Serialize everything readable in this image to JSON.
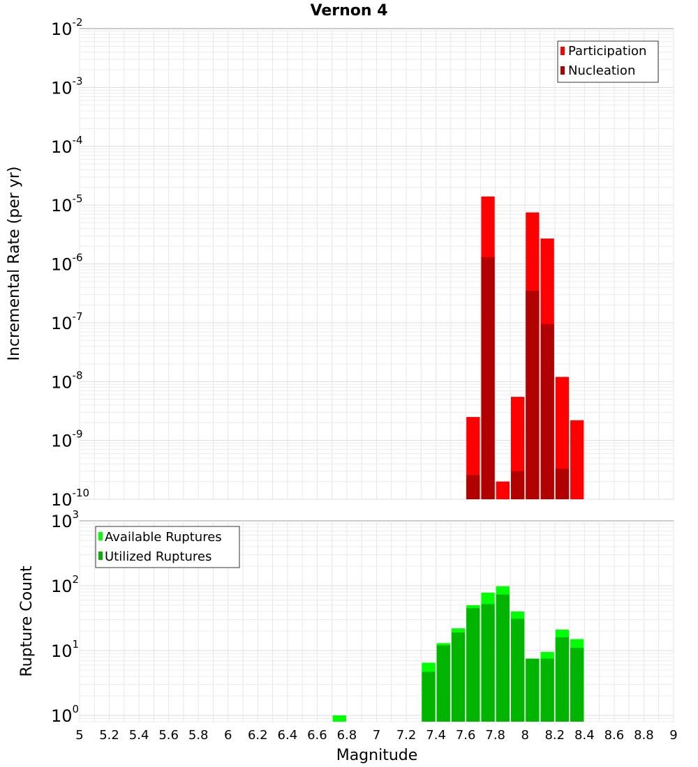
{
  "chart_data": [
    {
      "type": "bar",
      "title": "Vernon 4",
      "xlabel": "",
      "ylabel": "Incremental Rate (per yr)",
      "y_scale": "log",
      "ylim": [
        1e-10,
        0.01
      ],
      "y_tick_exponents": [
        "-2",
        "-3",
        "-4",
        "-5",
        "-6",
        "-7",
        "-8",
        "-9",
        "-10"
      ],
      "xlim": [
        5,
        9
      ],
      "grid": true,
      "legend": {
        "placement": "top-right",
        "entries": [
          {
            "name": "Participation",
            "color": "#ff0000"
          },
          {
            "name": "Nucleation",
            "color": "#b00000"
          }
        ]
      },
      "bin_width": 0.1,
      "series": [
        {
          "name": "Participation",
          "color": "#ff0000",
          "x": [
            7.65,
            7.75,
            7.85,
            7.95,
            8.05,
            8.15,
            8.25,
            8.35
          ],
          "values": [
            2.5e-09,
            1.4e-05,
            2e-10,
            5.5e-09,
            7.5e-06,
            2.7e-06,
            1.2e-08,
            2.2e-09
          ]
        },
        {
          "name": "Nucleation",
          "color": "#b00000",
          "x": [
            7.65,
            7.75,
            7.95,
            8.05,
            8.15,
            8.25
          ],
          "values": [
            2.6e-10,
            1.3e-06,
            3e-10,
            3.5e-07,
            9.5e-08,
            3.3e-10
          ]
        }
      ]
    },
    {
      "type": "bar",
      "title": "",
      "xlabel": "Magnitude",
      "ylabel": "Rupture Count",
      "y_scale": "log",
      "ylim": [
        0.8,
        1000
      ],
      "y_tick_exponents": [
        "3",
        "2",
        "1",
        "0"
      ],
      "xlim": [
        5,
        9
      ],
      "x_tick_labels": [
        "5",
        "5.2",
        "5.4",
        "5.6",
        "5.8",
        "6",
        "6.2",
        "6.4",
        "6.6",
        "6.8",
        "7",
        "7.2",
        "7.4",
        "7.6",
        "7.8",
        "8",
        "8.2",
        "8.4",
        "8.6",
        "8.8",
        "9"
      ],
      "grid": true,
      "legend": {
        "placement": "top-left",
        "entries": [
          {
            "name": "Available Ruptures",
            "color": "#00ff00"
          },
          {
            "name": "Utilized Ruptures",
            "color": "#00b400"
          }
        ]
      },
      "bin_width": 0.1,
      "series": [
        {
          "name": "Available Ruptures",
          "color": "#00ff00",
          "x": [
            6.75,
            7.35,
            7.45,
            7.55,
            7.65,
            7.75,
            7.85,
            7.95,
            8.05,
            8.15,
            8.25,
            8.35
          ],
          "values": [
            1,
            6.5,
            13,
            22,
            50,
            78,
            98,
            40,
            7.5,
            9.5,
            21,
            15
          ]
        },
        {
          "name": "Utilized Ruptures",
          "color": "#00b400",
          "x": [
            7.35,
            7.45,
            7.55,
            7.65,
            7.75,
            7.85,
            7.95,
            8.05,
            8.15,
            8.25,
            8.35
          ],
          "values": [
            4.7,
            12,
            19,
            45,
            52,
            73,
            31,
            7.5,
            7.5,
            16,
            11
          ]
        }
      ]
    }
  ]
}
